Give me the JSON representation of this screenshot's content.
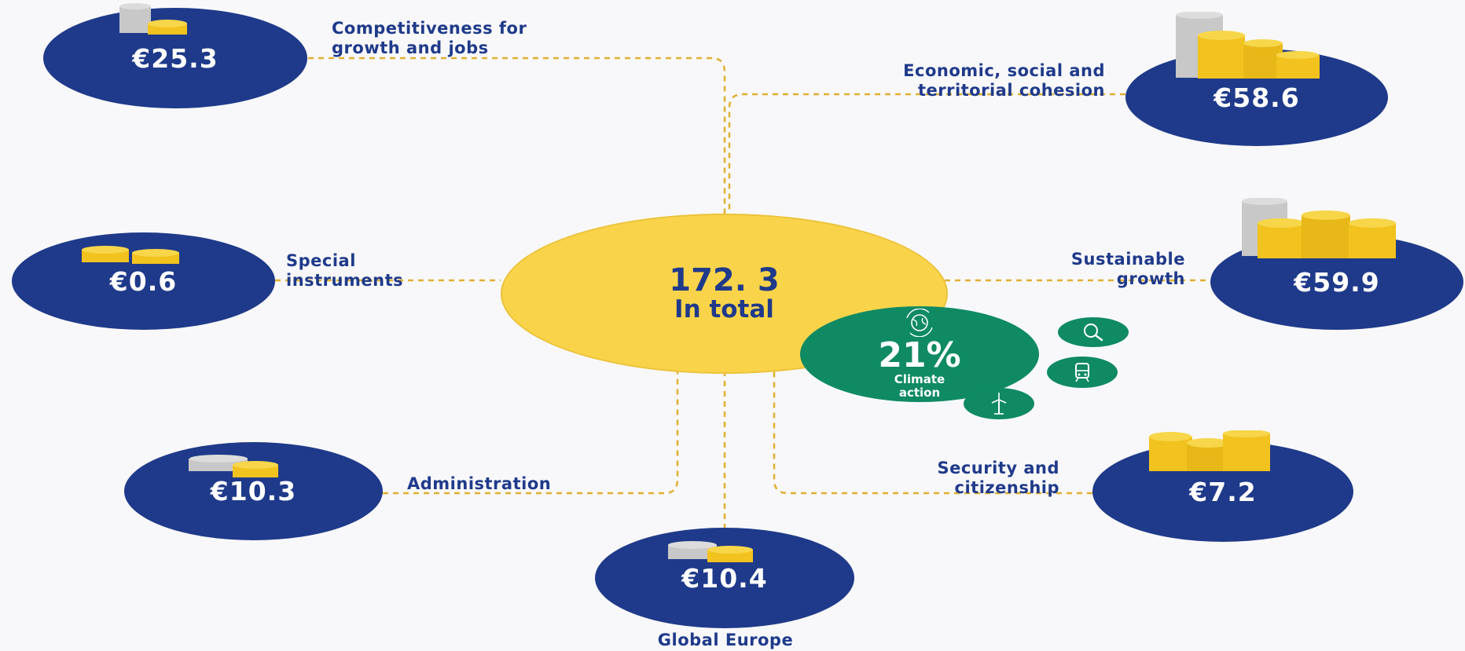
{
  "total": {
    "value": "172. 3",
    "label": "In total"
  },
  "climate": {
    "percent": "21%",
    "label_line1": "Climate",
    "label_line2": "action"
  },
  "categories": [
    {
      "name_line1": "Competitiveness for",
      "name_line2": "growth and jobs",
      "amount": "€25.3"
    },
    {
      "name_line1": "Economic, social and",
      "name_line2": "territorial cohesion",
      "amount": "€58.6"
    },
    {
      "name_line1": "Special",
      "name_line2": "instruments",
      "amount": "€0.6"
    },
    {
      "name_line1": "Sustainable",
      "name_line2": "growth",
      "amount": "€59.9"
    },
    {
      "name_line1": "Administration",
      "amount": "€10.3"
    },
    {
      "name_line1": "Security and",
      "name_line2": "citizenship",
      "amount": "€7.2"
    },
    {
      "name_line1": "Global Europe",
      "amount": "€10.4"
    }
  ],
  "icons": [
    "globe-recycle-icon",
    "magnifier-icon",
    "train-icon",
    "wind-turbine-icon",
    "coin-stack-icon"
  ],
  "colors": {
    "navy": "#1f3a8a",
    "yellow": "#f9d44a",
    "green": "#0f8a63",
    "gold_line": "#e0b030"
  }
}
